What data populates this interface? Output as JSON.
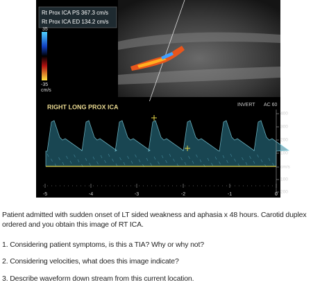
{
  "image": {
    "measurements": [
      "Rt Prox ICA PS 367.3 cm/s",
      "Rt Prox ICA ED 134.2 cm/s"
    ],
    "color_scale": {
      "top": "35",
      "bottom": "-35",
      "unit": "cm/s"
    },
    "spectral_label": "RIGHT LONG PROX ICA",
    "settings": [
      "INVERT",
      "AC 60"
    ],
    "velocity_scale": [
      "400",
      "300",
      "200",
      "100",
      "cm/s",
      "100",
      "200"
    ],
    "time_scale": [
      "-5",
      "-4",
      "-3",
      "-2",
      "-1",
      "0"
    ]
  },
  "text": {
    "paragraph_lines": [
      "Patient admitted with sudden onset of LT sided weakness and aphasia x 48 hours. Carotid duplex",
      "ordered and you obtain this image of RT ICA."
    ],
    "questions": [
      "1. Considering patient symptoms, is this a TIA? Why or why not?",
      "2. Considering velocities, what does this image indicate?",
      "3. Describe waveform down stream from this current location."
    ]
  }
}
